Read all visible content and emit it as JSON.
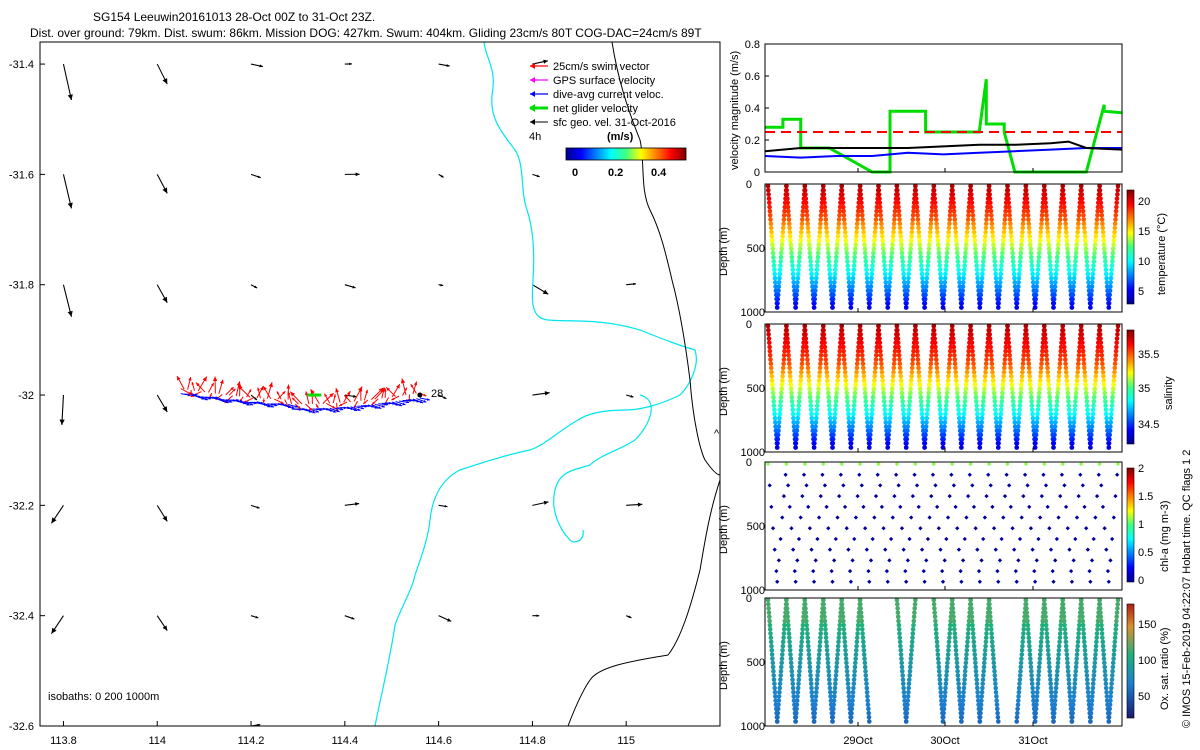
{
  "header": {
    "title": "SG154 Leeuwin20161013 28-Oct 00Z to 31-Oct 23Z.",
    "subtitle": "Dist. over ground: 79km. Dist. swum: 86km. Mission DOG: 427km. Swum: 404km. Gliding 23cm/s 80T COG-DAC=24cm/s 89T"
  },
  "colors": {
    "swim": "#ff0000",
    "gps": "#ff00ff",
    "dac": "#0000ff",
    "net": "#00dd00",
    "geo": "#000000",
    "coast": "#00e5ee",
    "isobath": "#000000"
  },
  "chart_data": [
    {
      "type": "map",
      "name": "glider track map",
      "xlim": [
        113.75,
        115.2
      ],
      "ylim": [
        -32.6,
        -31.36
      ],
      "xticks": [
        "113.8",
        "114",
        "114.2",
        "114.4",
        "114.6",
        "114.8",
        "115"
      ],
      "yticks": [
        "-31.4",
        "-31.6",
        "-31.8",
        "-32",
        "-32.2",
        "-32.4",
        "-32.6"
      ],
      "legend": [
        "25cm/s swim vector",
        "GPS surface velocity",
        "dive-avg current veloc.",
        "net glider velocity",
        "sfc geo. vel. 31-Oct-2016",
        "4h"
      ],
      "legend_units": "(m/s)",
      "colorbar_ticks": [
        "0",
        "0.2",
        "0.4"
      ],
      "start_label": "28",
      "isobaths_label": "isobaths: 0   200  1000m",
      "arrow_marker": "^",
      "track": {
        "lon_start": 114.56,
        "lon_end": 114.05,
        "lat": -32.0
      }
    },
    {
      "type": "line",
      "name": "velocity magnitude",
      "ylabel": "velocity magnitude (m/s)",
      "ylim": [
        0,
        0.8
      ],
      "yticks": [
        "0",
        "0.2",
        "0.4",
        "0.6",
        "0.8"
      ],
      "reference_line": 0.25,
      "series": [
        {
          "name": "net glider velocity",
          "color": "#00dd00",
          "t": [
            0,
            0.05,
            0.05,
            0.1,
            0.1,
            0.18,
            0.3,
            0.35,
            0.35,
            0.45,
            0.45,
            0.6,
            0.62,
            0.62,
            0.67,
            0.67,
            0.7,
            0.9,
            0.95,
            0.95,
            1.0
          ],
          "v": [
            0.28,
            0.28,
            0.33,
            0.33,
            0.15,
            0.15,
            0.0,
            0.0,
            0.38,
            0.38,
            0.25,
            0.25,
            0.58,
            0.3,
            0.3,
            0.25,
            0.0,
            0.0,
            0.42,
            0.38,
            0.37
          ]
        },
        {
          "name": "dive-avg current",
          "color": "#0000ff",
          "t": [
            0,
            0.1,
            0.2,
            0.3,
            0.4,
            0.5,
            0.6,
            0.7,
            0.8,
            0.9,
            1.0
          ],
          "v": [
            0.1,
            0.09,
            0.1,
            0.1,
            0.12,
            0.11,
            0.12,
            0.13,
            0.14,
            0.15,
            0.15
          ]
        },
        {
          "name": "swim speed",
          "color": "#000000",
          "t": [
            0,
            0.1,
            0.2,
            0.3,
            0.4,
            0.5,
            0.6,
            0.7,
            0.8,
            0.85,
            0.9,
            1.0
          ],
          "v": [
            0.13,
            0.15,
            0.15,
            0.15,
            0.15,
            0.16,
            0.17,
            0.17,
            0.18,
            0.19,
            0.15,
            0.14
          ]
        }
      ]
    },
    {
      "type": "scatter",
      "name": "temperature",
      "ylabel": "Depth (m)",
      "colorbar_label": "temperature (°C)",
      "yticks": [
        "0",
        "500",
        "1000"
      ],
      "cticks": [
        "20",
        "15",
        "10",
        "5"
      ],
      "crange": [
        3,
        22
      ],
      "vmin_top": 22,
      "vmax_bot": 3,
      "profiles": 38,
      "max_depth_frac": 0.98
    },
    {
      "type": "scatter",
      "name": "salinity",
      "ylabel": "Depth (m)",
      "colorbar_label": "salinity",
      "yticks": [
        "0",
        "500",
        "1000"
      ],
      "cticks": [
        "35.5",
        "35",
        "34.5"
      ],
      "crange": [
        34.3,
        35.9
      ],
      "vmin_top": 35.8,
      "vmax_bot": 34.4,
      "profiles": 38,
      "max_depth_frac": 0.98
    },
    {
      "type": "scatter",
      "name": "chl-a",
      "ylabel": "Depth (m)",
      "colorbar_label": "chl-a (mg m-3)",
      "yticks": [
        "0",
        "500",
        "1000"
      ],
      "cticks": [
        "2",
        "1.5",
        "1",
        "0.5",
        "0"
      ],
      "crange": [
        0,
        2
      ],
      "profiles": 38,
      "max_depth_frac": 0.95
    },
    {
      "type": "scatter",
      "name": "oxygen saturation",
      "ylabel": "Depth (m)",
      "colorbar_label": "Ox. sat. ratio (%)",
      "yticks": [
        "0",
        "500",
        "1000"
      ],
      "cticks": [
        "150",
        "100",
        "50"
      ],
      "crange": [
        20,
        175
      ],
      "profiles": 38,
      "max_depth_frac": 0.98
    }
  ],
  "time_axis": {
    "labels": [
      "29Oct",
      "30Oct",
      "31Oct"
    ]
  },
  "footer": "© IMOS 15-Feb-2019 04:22:07 Hobart time. QC flags 1  2"
}
